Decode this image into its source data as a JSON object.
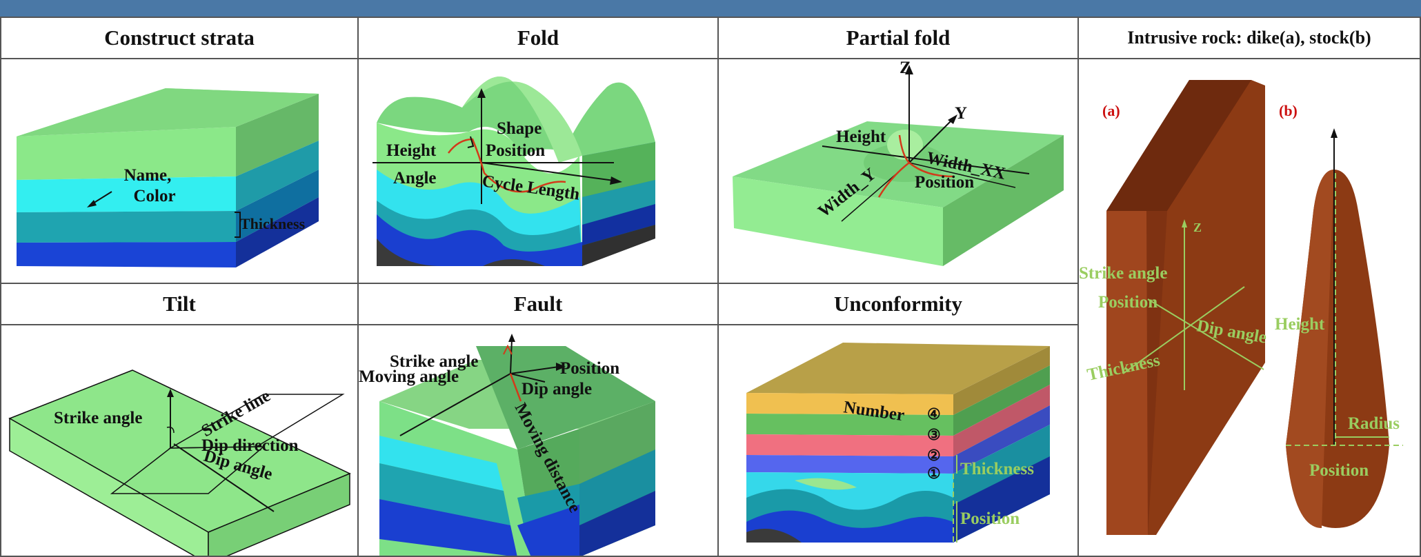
{
  "panels": {
    "construct_strata": {
      "title": "Construct strata",
      "labels": {
        "name_color": [
          "Name,",
          "Color"
        ],
        "thickness": "Thickness"
      }
    },
    "fold": {
      "title": "Fold",
      "labels": {
        "height": "Height",
        "shape": "Shape",
        "position": "Position",
        "angle": "Angle",
        "cycle_length": "Cycle Length"
      }
    },
    "partial_fold": {
      "title": "Partial fold",
      "labels": {
        "z": "Z",
        "y": "Y",
        "height": "Height",
        "width_xx": "Width_XX",
        "width_y": "Width_Y",
        "position": "Position"
      }
    },
    "intrusive": {
      "title": "Intrusive rock: dike(a), stock(b)",
      "labels": {
        "a": "(a)",
        "b": "(b)",
        "z": "Z",
        "strike_angle": "Strike angle",
        "position": "Position",
        "dip_angle": "Dip angle",
        "thickness": "Thickness",
        "height": "Height",
        "radius": "Radius",
        "position_b": "Position"
      }
    },
    "tilt": {
      "title": "Tilt",
      "labels": {
        "strike_angle": "Strike angle",
        "strike_line": "Strike line",
        "dip_direction": "Dip direction",
        "dip_angle": "Dip angle"
      }
    },
    "fault": {
      "title": "Fault",
      "labels": {
        "strike_angle": "Strike angle",
        "position": "Position",
        "moving_angle": "Moving angle",
        "dip_angle": "Dip angle",
        "moving_distance": "Moving distance"
      }
    },
    "unconformity": {
      "title": "Unconformity",
      "labels": {
        "number": "Number",
        "n4": "④",
        "n3": "③",
        "n2": "②",
        "n1": "①",
        "thickness": "Thickness",
        "position": "Position"
      }
    }
  },
  "colors": {
    "header_bar": "#4a78a6",
    "light_green": "#8ed88a",
    "green": "#66bf6a",
    "cyan": "#33e8ee",
    "teal": "#1fa4b0",
    "blue": "#1a3fd0",
    "dark_gray": "#3a3a3a",
    "brown": "#8c3a14",
    "label_green": "#9acd60",
    "label_red": "#cc1111"
  }
}
